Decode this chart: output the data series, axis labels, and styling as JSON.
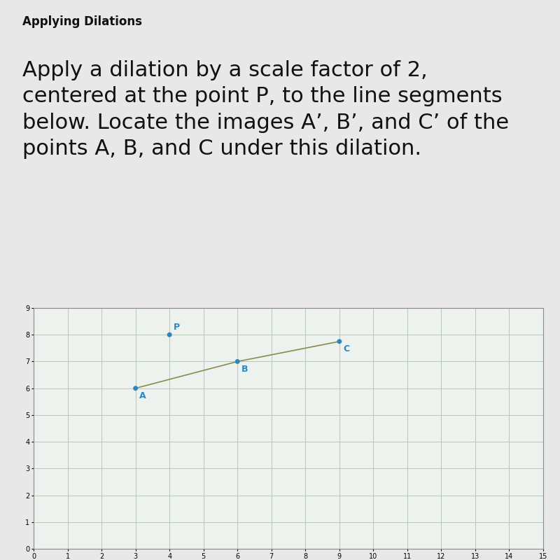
{
  "title": "Applying Dilations",
  "problem_text_line1": "Apply a dilation by a scale factor of 2,",
  "problem_text_line2": "centered at the point P, to the line segments",
  "problem_text_line3": "below. Locate the images A’, B’, and C’ of the",
  "problem_text_line4": "points A, B, and C under this dilation.",
  "point_P": [
    4,
    8
  ],
  "point_A": [
    3,
    6
  ],
  "point_B": [
    6,
    7
  ],
  "point_C": [
    9,
    7.75
  ],
  "point_color": "#2e86c1",
  "segment_color": "#8B8B4A",
  "bg_color": "#eef2ee",
  "outer_bg": "#e8e8e8",
  "text_bg": "#f2f2f2",
  "grid_color": "#b8c8b8",
  "xlim": [
    0,
    15
  ],
  "ylim": [
    0,
    9
  ],
  "xticks": [
    0,
    1,
    2,
    3,
    4,
    5,
    6,
    7,
    8,
    9,
    10,
    11,
    12,
    13,
    14,
    15
  ],
  "yticks": [
    0,
    1,
    2,
    3,
    4,
    5,
    6,
    7,
    8,
    9
  ],
  "title_fontsize": 12,
  "text_fontsize": 22,
  "point_label_fontsize": 9
}
